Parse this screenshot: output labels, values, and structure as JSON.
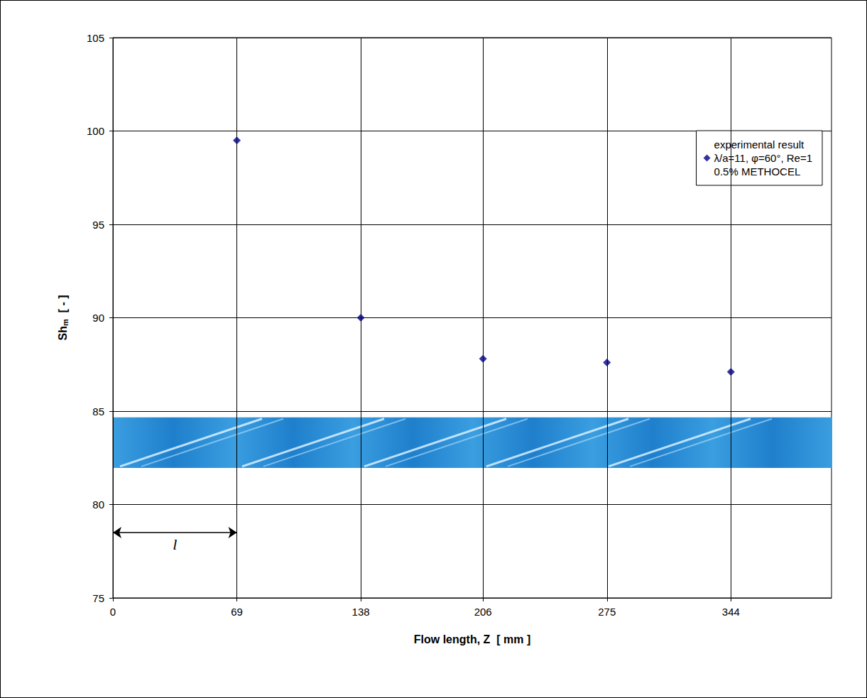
{
  "chart_data": {
    "type": "scatter",
    "x_label": "Flow length, Z  [ mm ]",
    "y_label": {
      "base": "Sh",
      "sub": "m",
      "unit": "[ - ]"
    },
    "x": [
      69,
      138,
      206,
      275,
      344
    ],
    "series": [
      {
        "name": "experimental result",
        "color": "#000080",
        "marker": "diamond",
        "values": [
          99.5,
          90.0,
          87.8,
          87.6,
          87.1
        ]
      }
    ],
    "legend_notes": [
      "λ/a=11, φ=60°, Re=1",
      "0.5% METHOCEL"
    ],
    "legend": "upper right",
    "annotations": [
      {
        "text": "l",
        "x_from": 0,
        "x_to": 69,
        "y": 78.5
      }
    ],
    "xlim": [
      0,
      400
    ],
    "xticks": [
      0,
      69,
      138,
      206,
      275,
      344
    ],
    "ylim": [
      75,
      105
    ],
    "yticks": [
      75,
      80,
      85,
      90,
      95,
      100,
      105
    ],
    "grid": true
  }
}
